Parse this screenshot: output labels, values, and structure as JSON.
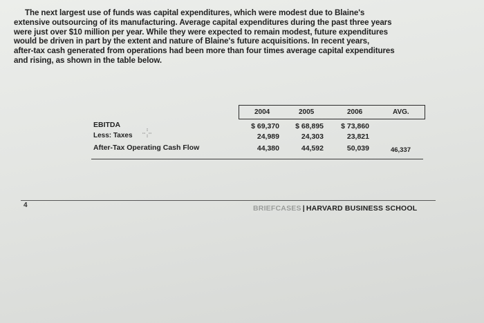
{
  "paragraph": {
    "line1": "The next largest use of funds was capital expenditures, which were modest due to Blaine's",
    "line2": "extensive outsourcing of its manufacturing. Average capital expenditures during the past three years",
    "line3": "were just over $10 million per year. While they were expected to remain modest, future expenditures",
    "line4": "would be driven in part by the extent and nature of Blaine's future acquisitions. In recent years,",
    "line5": "after-tax cash generated from operations had been more than four times average capital expenditures",
    "line6": "and rising, as shown in the table below."
  },
  "table": {
    "headers": [
      "2004",
      "2005",
      "2006",
      "AVG."
    ],
    "rows": [
      {
        "label": "EBITDA",
        "values": [
          "$ 69,370",
          "$ 68,895",
          "$ 73,860",
          ""
        ]
      },
      {
        "label": "Less: Taxes",
        "values": [
          "24,989",
          "24,303",
          "23,821",
          ""
        ]
      },
      {
        "label": "After-Tax Operating Cash Flow",
        "values": [
          "44,380",
          "44,592",
          "50,039",
          "46,337"
        ]
      }
    ]
  },
  "footer": {
    "page_number": "4",
    "brand_light": "BRIEFCASES",
    "brand_sep": "|",
    "brand_dark": "HARVARD BUSINESS SCHOOL"
  },
  "icons": {
    "cursor": "crosshair-cursor-icon"
  }
}
